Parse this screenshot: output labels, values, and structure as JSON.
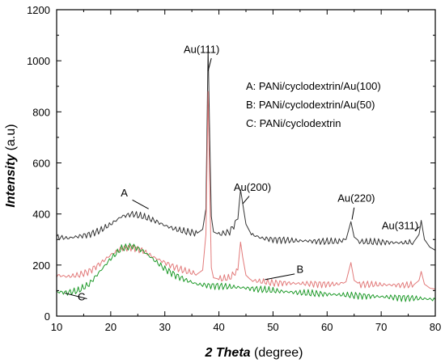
{
  "chart_data": {
    "type": "line",
    "xlabel": "2 Theta (degree)",
    "xlabel_emphasis": "2 Theta",
    "xlabel_unit": " (degree)",
    "ylabel": "Intensity (a.u)",
    "ylabel_emphasis": "Intensity",
    "ylabel_unit": " (a.u)",
    "xlim": [
      10,
      80
    ],
    "ylim": [
      0,
      1200
    ],
    "xticks": [
      10,
      20,
      30,
      40,
      50,
      60,
      70,
      80
    ],
    "yticks": [
      0,
      200,
      400,
      600,
      800,
      1000,
      1200
    ],
    "grid": false,
    "legend": {
      "placement": "top-right",
      "entries": [
        "A: PANi/cyclodextrin/Au(100)",
        "B: PANi/cyclodextrin/Au(50)",
        "C: PANi/cyclodextrin"
      ]
    },
    "series": [
      {
        "name": "A",
        "color": "#333333",
        "x": [
          10,
          12,
          14,
          16,
          18,
          20,
          22,
          24,
          26,
          28,
          30,
          32,
          34,
          36,
          37,
          37.6,
          38,
          38.3,
          38.6,
          39,
          40,
          42,
          43.5,
          44,
          44.4,
          45,
          46,
          48,
          50,
          52,
          54,
          56,
          58,
          60,
          62,
          63.5,
          64.4,
          65,
          66,
          68,
          70,
          72,
          74,
          76,
          77,
          77.4,
          78,
          79,
          80
        ],
        "y": [
          310,
          305,
          312,
          320,
          335,
          360,
          390,
          400,
          390,
          375,
          355,
          340,
          330,
          325,
          340,
          420,
          1060,
          700,
          390,
          330,
          320,
          330,
          380,
          495,
          440,
          360,
          320,
          305,
          300,
          298,
          295,
          295,
          293,
          292,
          292,
          300,
          370,
          310,
          292,
          290,
          290,
          288,
          287,
          290,
          320,
          375,
          300,
          270,
          258
        ]
      },
      {
        "name": "B",
        "color": "#e27a7a",
        "x": [
          10,
          12,
          14,
          16,
          18,
          20,
          22,
          24,
          26,
          28,
          30,
          32,
          34,
          36,
          37,
          37.6,
          38,
          38.3,
          38.6,
          39,
          40,
          42,
          43.5,
          44,
          44.4,
          45,
          46,
          48,
          50,
          52,
          54,
          56,
          58,
          60,
          62,
          63.5,
          64.4,
          65,
          66,
          68,
          70,
          72,
          74,
          76,
          77,
          77.4,
          78,
          79,
          80
        ],
        "y": [
          160,
          155,
          160,
          175,
          205,
          240,
          265,
          270,
          255,
          230,
          210,
          190,
          175,
          165,
          180,
          320,
          880,
          500,
          190,
          150,
          145,
          150,
          180,
          290,
          230,
          160,
          140,
          135,
          130,
          130,
          128,
          127,
          126,
          125,
          125,
          135,
          210,
          140,
          125,
          124,
          123,
          122,
          121,
          122,
          140,
          175,
          125,
          110,
          105
        ]
      },
      {
        "name": "C",
        "color": "#1f9a2a",
        "x": [
          10,
          12,
          14,
          16,
          18,
          20,
          22,
          24,
          26,
          28,
          30,
          32,
          34,
          36,
          38,
          40,
          42,
          44,
          46,
          48,
          50,
          52,
          54,
          56,
          58,
          60,
          62,
          64,
          66,
          68,
          70,
          72,
          74,
          76,
          78,
          80
        ],
        "y": [
          95,
          92,
          100,
          125,
          175,
          225,
          265,
          275,
          255,
          220,
          185,
          160,
          140,
          125,
          120,
          118,
          115,
          112,
          108,
          104,
          100,
          96,
          93,
          90,
          88,
          86,
          84,
          82,
          80,
          78,
          76,
          74,
          72,
          70,
          68,
          65
        ]
      }
    ],
    "annotations": [
      {
        "text": "Au(111)",
        "x": 36.8,
        "y": 1030
      },
      {
        "text": "Au(200)",
        "x": 46.2,
        "y": 490
      },
      {
        "text": "Au(220)",
        "x": 65.4,
        "y": 448
      },
      {
        "text": "Au(311)",
        "x": 73.5,
        "y": 340
      },
      {
        "text": "A",
        "x": 22.5,
        "y": 468
      },
      {
        "text": "B",
        "x": 55.0,
        "y": 170
      },
      {
        "text": "C",
        "x": 14.6,
        "y": 62
      }
    ]
  }
}
